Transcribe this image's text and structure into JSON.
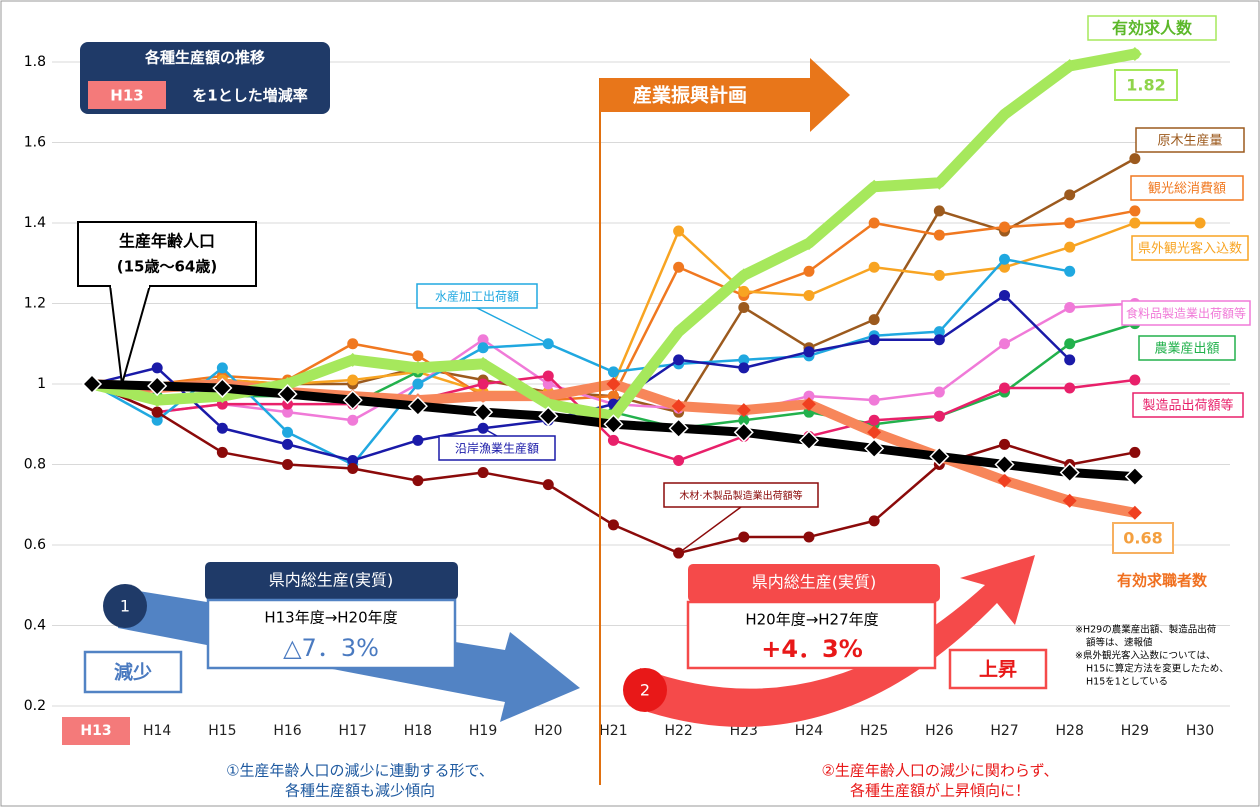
{
  "chart_data": {
    "type": "line",
    "categories": [
      "H13",
      "H14",
      "H15",
      "H16",
      "H17",
      "H18",
      "H19",
      "H20",
      "H21",
      "H22",
      "H23",
      "H24",
      "H25",
      "H26",
      "H27",
      "H28",
      "H29",
      "H30"
    ],
    "ylim": [
      0.2,
      1.92
    ],
    "yticks": [
      0.2,
      0.4,
      0.6,
      0.8,
      1,
      1.2,
      1.4,
      1.6,
      1.8
    ],
    "grid": true,
    "series": [
      {
        "name": "有効求人数",
        "color": "#a6e85c",
        "values": [
          1.0,
          0.96,
          0.97,
          1.0,
          1.06,
          1.04,
          1.05,
          0.95,
          0.92,
          1.13,
          1.27,
          1.35,
          1.49,
          1.5,
          1.67,
          1.79,
          1.82,
          null
        ]
      },
      {
        "name": "有効求職者数",
        "color": "#f7865a",
        "values": [
          1.0,
          0.99,
          1.0,
          0.98,
          0.97,
          0.96,
          0.97,
          0.97,
          1.0,
          0.945,
          0.935,
          0.95,
          0.88,
          0.82,
          0.76,
          0.71,
          0.68,
          null
        ]
      },
      {
        "name": "生産年齢人口",
        "color": "#000000",
        "values": [
          1.0,
          0.995,
          0.99,
          0.975,
          0.96,
          0.945,
          0.93,
          0.92,
          0.9,
          0.89,
          0.88,
          0.86,
          0.84,
          0.82,
          0.8,
          0.78,
          0.77,
          null
        ]
      },
      {
        "name": "原木生産量",
        "color": "#9c5a1e",
        "values": [
          1.0,
          1.0,
          1.01,
          1.0,
          1.0,
          1.04,
          1.01,
          0.98,
          0.97,
          0.93,
          1.19,
          1.09,
          1.16,
          1.43,
          1.38,
          1.47,
          1.56,
          null
        ]
      },
      {
        "name": "観光総消費額",
        "color": "#f07820",
        "values": [
          1.0,
          1.0,
          1.02,
          1.01,
          1.1,
          1.07,
          0.97,
          0.96,
          0.97,
          1.29,
          1.22,
          1.28,
          1.4,
          1.37,
          1.39,
          1.4,
          1.43,
          null
        ]
      },
      {
        "name": "県外観光客入込数",
        "color": "#f8a422",
        "values": [
          1.0,
          1.0,
          1.01,
          1.0,
          1.01,
          1.03,
          0.98,
          0.98,
          1.0,
          1.38,
          1.23,
          1.22,
          1.29,
          1.27,
          1.29,
          1.34,
          1.4,
          1.4
        ]
      },
      {
        "name": "食料品製造業出荷額等",
        "color": "#f07ad8",
        "values": [
          1.0,
          0.93,
          0.95,
          0.93,
          0.91,
          1.0,
          1.11,
          1.0,
          0.95,
          0.94,
          0.93,
          0.97,
          0.96,
          0.98,
          1.1,
          1.19,
          1.2,
          null
        ]
      },
      {
        "name": "農業産出額",
        "color": "#22b14c",
        "values": [
          1.0,
          0.97,
          0.97,
          0.97,
          0.95,
          1.03,
          1.05,
          0.96,
          0.93,
          0.89,
          0.91,
          0.93,
          0.9,
          0.92,
          0.98,
          1.1,
          1.15,
          null
        ]
      },
      {
        "name": "製造品出荷額等",
        "color": "#e8206a",
        "values": [
          1.0,
          0.93,
          0.95,
          0.95,
          0.95,
          0.96,
          1.0,
          1.02,
          0.86,
          0.81,
          0.87,
          0.87,
          0.91,
          0.92,
          0.99,
          0.99,
          1.01,
          null
        ]
      },
      {
        "name": "水産加工出荷額",
        "color": "#20a8e0",
        "values": [
          1.0,
          0.91,
          1.04,
          0.88,
          0.8,
          1.0,
          1.09,
          1.1,
          1.03,
          1.05,
          1.06,
          1.07,
          1.12,
          1.13,
          1.31,
          1.28,
          null,
          null
        ]
      },
      {
        "name": "沿岸漁業生産額",
        "color": "#1a1aa8",
        "values": [
          1.0,
          1.04,
          0.89,
          0.85,
          0.81,
          0.86,
          0.89,
          0.91,
          0.95,
          1.06,
          1.04,
          1.08,
          1.11,
          1.11,
          1.22,
          1.06,
          null,
          null
        ]
      },
      {
        "name": "木材·木製品製造業出荷額等",
        "color": "#8b0a0a",
        "values": [
          1.0,
          0.93,
          0.83,
          0.8,
          0.79,
          0.76,
          0.78,
          0.75,
          0.65,
          0.58,
          0.62,
          0.62,
          0.66,
          0.8,
          0.85,
          0.8,
          0.83,
          null
        ]
      }
    ]
  },
  "annotations": {
    "title": "各種生産額の推移",
    "base_badge": "H13",
    "base_text": "を1とした増減率",
    "population_sub": "(15歳～64歳)",
    "plan": "産業振興計画",
    "left": {
      "heading": "県内総生産(実質)",
      "period": "H13年度→H20年度",
      "change": "△7．3%",
      "trend": "減少",
      "number": "1"
    },
    "right": {
      "heading": "県内総生産(実質)",
      "period": "H20年度→H27年度",
      "change": "+4．3%",
      "trend": "上昇",
      "number": "2"
    },
    "notes": [
      "※H29の農業産出額、製造品出荷",
      "額等は、速報値",
      "※県外観光客入込数については、",
      "H15に算定方法を変更したため、",
      "H15を1としている"
    ],
    "summary_left": [
      "①生産年齢人口の減少に連動する形で、",
      "各種生産額も減少傾向"
    ],
    "summary_right": [
      "②生産年齢人口の減少に関わらず、",
      "各種生産額が上昇傾向に！"
    ]
  }
}
